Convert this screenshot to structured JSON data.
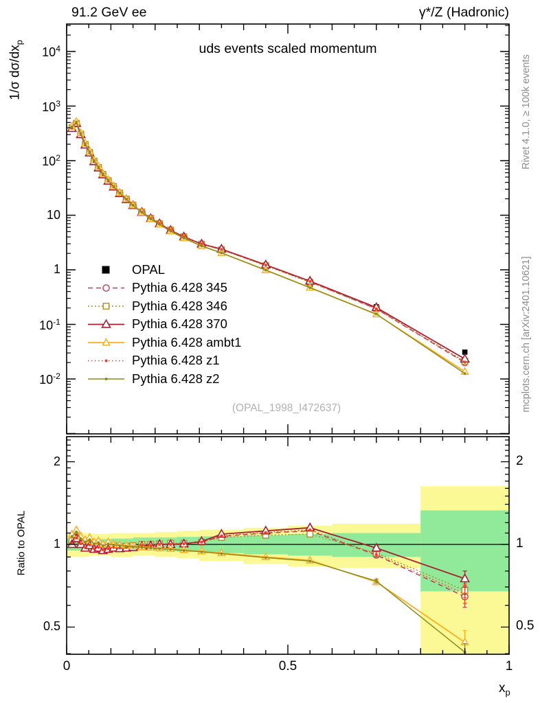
{
  "header": {
    "left": "91.2 GeV ee",
    "right": "γ*/Z (Hadronic)"
  },
  "plot": {
    "title": "uds events scaled momentum",
    "watermark": "(OPAL_1998_I472637)",
    "ylabel_main": "1/σ  dσ/dx",
    "ylabel_sub": "p",
    "ratio_ylabel": "Ratio to OPAL",
    "xlabel_main": "x",
    "xlabel_sub": "p"
  },
  "side_notes": {
    "top": "Rivet 4.1.0, ≥ 100k events",
    "bottom": "mcplots.cern.ch [arXiv:2401.10621]"
  },
  "legend": {
    "items": [
      {
        "label": "OPAL",
        "key": "OPAL"
      },
      {
        "label": "Pythia 6.428 345",
        "key": "p345"
      },
      {
        "label": "Pythia 6.428 346",
        "key": "p346"
      },
      {
        "label": "Pythia 6.428 370",
        "key": "p370"
      },
      {
        "label": "Pythia 6.428 ambt1",
        "key": "ambt1"
      },
      {
        "label": "Pythia 6.428 z1",
        "key": "z1"
      },
      {
        "label": "Pythia 6.428 z2",
        "key": "z2"
      }
    ]
  },
  "colors": {
    "p345": "#c23a5a",
    "p346": "#b08c2e",
    "p370": "#a81e32",
    "ambt1": "#fdae1f",
    "z1": "#ea3f23",
    "z2": "#8f8c1a",
    "opal": "#000000",
    "band_green": "#90ea9a",
    "band_yellow": "#fbf996",
    "frame": "#000000"
  },
  "axes": {
    "main_y_ticks": [
      {
        "base": "10",
        "exp": "4",
        "value": 10000
      },
      {
        "base": "10",
        "exp": "3",
        "value": 1000
      },
      {
        "base": "10",
        "exp": "2",
        "value": 100
      },
      {
        "base": "10",
        "value": 10
      },
      {
        "base": "1",
        "value": 1
      },
      {
        "base": "10",
        "exp": "-1",
        "value": 0.1
      },
      {
        "base": "10",
        "exp": "-2",
        "value": 0.01
      }
    ],
    "ratio_y_ticks": [
      {
        "label": "2",
        "value": 2
      },
      {
        "label": "1",
        "value": 1
      },
      {
        "label": "0.5",
        "value": 0.5
      }
    ],
    "x_ticks": [
      {
        "label": "0",
        "value": 0
      },
      {
        "label": "0.5",
        "value": 0.5
      },
      {
        "label": "1",
        "value": 1
      }
    ]
  },
  "chart_data": {
    "type": "line",
    "title": "uds events scaled momentum",
    "xlabel": "x_p",
    "ylabel": "1/sigma dsigma/dx_p",
    "xlim": [
      0,
      1
    ],
    "main_ylim_log10": [
      -3.0,
      4.5
    ],
    "ratio_ylim": [
      0.4,
      2.45
    ],
    "grid": false,
    "legend_position": "middle-left",
    "x": [
      0.012,
      0.022,
      0.032,
      0.042,
      0.052,
      0.062,
      0.072,
      0.082,
      0.094,
      0.106,
      0.12,
      0.135,
      0.15,
      0.17,
      0.19,
      0.21,
      0.235,
      0.265,
      0.305,
      0.35,
      0.45,
      0.55,
      0.7,
      0.9
    ],
    "opal_values": [
      390,
      460,
      300,
      200,
      140,
      100,
      76,
      58,
      44,
      34,
      26,
      20,
      15.5,
      11.5,
      8.8,
      7.0,
      5.3,
      4.0,
      2.9,
      2.2,
      1.1,
      0.54,
      0.21,
      0.031
    ],
    "mc_series": [
      {
        "key": "p345",
        "name": "Pythia 6.428 345",
        "marker": "open-circle",
        "line": "dashed",
        "ratio": [
          1.02,
          1.06,
          1.01,
          0.98,
          1.0,
          0.97,
          0.98,
          0.96,
          0.97,
          0.98,
          0.97,
          0.975,
          0.98,
          0.99,
          0.99,
          1.0,
          1.0,
          1.005,
          1.02,
          1.07,
          1.1,
          1.12,
          0.915,
          0.645
        ],
        "ratio_err": {
          "22": 0.02,
          "23": 0.055
        }
      },
      {
        "key": "p346",
        "name": "Pythia 6.428 346",
        "marker": "open-square",
        "line": "dotted",
        "ratio": [
          1.03,
          1.05,
          1.02,
          0.99,
          1.01,
          0.98,
          0.99,
          0.97,
          0.98,
          0.99,
          0.98,
          0.985,
          0.99,
          1.0,
          1.0,
          1.005,
          1.01,
          1.01,
          1.02,
          1.06,
          1.08,
          1.09,
          0.93,
          0.68
        ],
        "ratio_err": {
          "22": 0.015,
          "23": 0.04
        }
      },
      {
        "key": "p370",
        "name": "Pythia 6.428 370",
        "marker": "open-triangle",
        "line": "solid",
        "ratio": [
          1.0,
          1.05,
          1.0,
          0.97,
          0.99,
          0.96,
          0.97,
          0.95,
          0.96,
          0.97,
          0.965,
          0.97,
          0.975,
          0.985,
          0.99,
          1.0,
          1.0,
          1.005,
          1.025,
          1.09,
          1.12,
          1.15,
          0.97,
          0.75
        ],
        "ratio_err": {
          "22": 0.02,
          "23": 0.05
        }
      },
      {
        "key": "ambt1",
        "name": "Pythia 6.428 ambt1",
        "marker": "open-triangle-sm",
        "line": "solid",
        "ratio": [
          1.09,
          1.13,
          1.07,
          1.04,
          1.06,
          1.02,
          1.03,
          1.0,
          1.02,
          1.0,
          0.995,
          0.99,
          0.985,
          0.98,
          0.975,
          0.97,
          0.965,
          0.955,
          0.945,
          0.93,
          0.9,
          0.875,
          0.73,
          0.44
        ],
        "ratio_err": {
          "22": 0.018,
          "23": 0.045
        }
      },
      {
        "key": "z1",
        "name": "Pythia 6.428 z1",
        "marker": "dot",
        "line": "fine-dotted",
        "ratio": [
          1.01,
          1.055,
          1.005,
          0.975,
          0.995,
          0.965,
          0.975,
          0.955,
          0.965,
          0.975,
          0.97,
          0.975,
          0.98,
          0.99,
          0.99,
          1.0,
          1.0,
          1.005,
          1.02,
          1.075,
          1.105,
          1.13,
          0.92,
          0.66
        ],
        "ratio_err": {
          "22": 0.02,
          "23": 0.05
        }
      },
      {
        "key": "z2",
        "name": "Pythia 6.428 z2",
        "marker": "dot",
        "line": "solid",
        "ratio": [
          1.07,
          1.11,
          1.05,
          1.02,
          1.04,
          1.005,
          1.015,
          0.99,
          1.005,
          0.995,
          0.99,
          0.985,
          0.98,
          0.975,
          0.97,
          0.965,
          0.96,
          0.95,
          0.94,
          0.925,
          0.895,
          0.87,
          0.735,
          0.405
        ],
        "ratio_err": {
          "22": 0.012,
          "23": 0.03
        }
      }
    ],
    "ratio_bands": {
      "edges": [
        0,
        0.05,
        0.1,
        0.15,
        0.2,
        0.25,
        0.3,
        0.4,
        0.5,
        0.6,
        0.8,
        1.0
      ],
      "yellow_lo": [
        0.9,
        0.91,
        0.9,
        0.91,
        0.9,
        0.89,
        0.87,
        0.85,
        0.83,
        0.82,
        0.39
      ],
      "yellow_hi": [
        1.1,
        1.09,
        1.1,
        1.1,
        1.11,
        1.12,
        1.13,
        1.15,
        1.17,
        1.19,
        1.63
      ],
      "green_lo": [
        0.95,
        0.955,
        0.95,
        0.95,
        0.945,
        0.94,
        0.93,
        0.92,
        0.91,
        0.9,
        0.675
      ],
      "green_hi": [
        1.05,
        1.045,
        1.05,
        1.06,
        1.06,
        1.065,
        1.07,
        1.08,
        1.09,
        1.1,
        1.33
      ]
    }
  }
}
